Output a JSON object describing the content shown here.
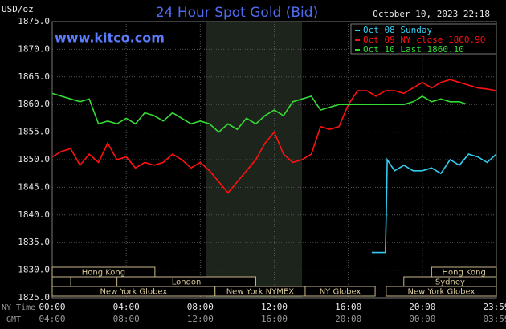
{
  "chart_data": {
    "type": "line",
    "title": "24 Hour Spot Gold (Bid)",
    "subtitle": "www.kitco.com",
    "timestamp": "October 10, 2023 22:18",
    "ylabel": "USD/oz",
    "x_row_labels": [
      "NY Time",
      "GMT"
    ],
    "xlim": [
      0,
      24
    ],
    "xticks": [
      {
        "value": 0,
        "label": "00:00"
      },
      {
        "value": 4,
        "label": "04:00"
      },
      {
        "value": 8,
        "label": "08:00"
      },
      {
        "value": 12,
        "label": "12:00"
      },
      {
        "value": 16,
        "label": "16:00"
      },
      {
        "value": 20,
        "label": "20:00"
      },
      {
        "value": 24,
        "label": "23:59"
      }
    ],
    "gmt_tick_labels": [
      "04:00",
      "08:00",
      "12:00",
      "16:00",
      "20:00",
      "00:00",
      "03:59"
    ],
    "ylim": [
      1825,
      1875
    ],
    "yticks": [
      {
        "value": 1825,
        "label": "1825.0"
      },
      {
        "value": 1830,
        "label": "1830.0"
      },
      {
        "value": 1835,
        "label": "1835.0"
      },
      {
        "value": 1840,
        "label": "1840.0"
      },
      {
        "value": 1845,
        "label": "1845.0"
      },
      {
        "value": 1850,
        "label": "1850.0"
      },
      {
        "value": 1855,
        "label": "1855.0"
      },
      {
        "value": 1860,
        "label": "1860.0"
      },
      {
        "value": 1865,
        "label": "1865.0"
      },
      {
        "value": 1870,
        "label": "1870.0"
      },
      {
        "value": 1875,
        "label": "1875.0"
      }
    ],
    "grid": true,
    "legend": "top-right",
    "highlight_x": [
      8.33,
      13.5
    ],
    "series": [
      {
        "name": "Oct 08 Sunday",
        "color": "#33ccee",
        "x": [
          17.27,
          18.0,
          18.05,
          18.1,
          18.5,
          19,
          19.5,
          20,
          20.5,
          21,
          21.5,
          22,
          22.5,
          23,
          23.5,
          24
        ],
        "values": [
          1833.2,
          1833.2,
          1840,
          1850,
          1848,
          1849,
          1848,
          1848,
          1848.5,
          1847.5,
          1850,
          1849,
          1851,
          1850.5,
          1849.5,
          1851
        ]
      },
      {
        "name": "Oct 09 NY close 1860.90",
        "color": "#ff1111",
        "x": [
          0,
          0.5,
          1,
          1.5,
          2,
          2.5,
          3,
          3.5,
          4,
          4.5,
          5,
          5.5,
          6,
          6.5,
          7,
          7.5,
          8,
          8.5,
          9,
          9.5,
          10,
          10.5,
          11,
          11.5,
          12,
          12.5,
          13,
          13.5,
          14,
          14.5,
          15,
          15.5,
          16,
          16.5,
          17,
          17.5,
          18,
          18.5,
          19,
          19.5,
          20,
          20.5,
          21,
          21.5,
          22,
          22.5,
          23,
          23.5,
          24
        ],
        "values": [
          1850.5,
          1851.5,
          1852,
          1849,
          1851,
          1849.5,
          1853,
          1850,
          1850.5,
          1848.5,
          1849.5,
          1849,
          1849.5,
          1851,
          1850,
          1848.5,
          1849.5,
          1848,
          1846,
          1844,
          1846,
          1848,
          1850,
          1853,
          1855,
          1851,
          1849.5,
          1850,
          1851,
          1856,
          1855.5,
          1856,
          1860,
          1862.5,
          1862.5,
          1861.5,
          1862.5,
          1862.5,
          1862,
          1863,
          1864,
          1863,
          1864,
          1864.5,
          1864,
          1863.5,
          1863,
          1862.8,
          1862.5
        ]
      },
      {
        "name": "Oct 10 Last 1860.10",
        "color": "#33dd33",
        "x": [
          0,
          0.5,
          1,
          1.5,
          2,
          2.5,
          3,
          3.5,
          4,
          4.5,
          5,
          5.5,
          6,
          6.5,
          7,
          7.5,
          8,
          8.5,
          9,
          9.5,
          10,
          10.5,
          11,
          11.5,
          12,
          12.5,
          13,
          13.5,
          14,
          14.5,
          15,
          15.5,
          16,
          16.5,
          17,
          17.5,
          18,
          18.5,
          19,
          19.5,
          20,
          20.5,
          21,
          21.5,
          22,
          22.35
        ],
        "values": [
          1862,
          1861.5,
          1861,
          1860.5,
          1861,
          1856.5,
          1857,
          1856.5,
          1857.5,
          1856.5,
          1858.5,
          1858,
          1857,
          1858.5,
          1857.5,
          1856.5,
          1857,
          1856.5,
          1855,
          1856.5,
          1855.5,
          1857.5,
          1856.5,
          1858,
          1859,
          1858,
          1860.5,
          1861,
          1861.5,
          1859,
          1859.5,
          1860,
          1860,
          1860,
          1860,
          1860,
          1860,
          1860,
          1860,
          1860.5,
          1861.5,
          1860.5,
          1861,
          1860.5,
          1860.5,
          1860.1
        ]
      }
    ],
    "session_rows": [
      [
        {
          "label": "Hong Kong",
          "start": 0,
          "end": 5.55
        },
        {
          "label": "Hong Kong",
          "start": 20.5,
          "end": 24
        }
      ],
      [
        {
          "label": null,
          "start": 0,
          "end": 1
        },
        {
          "label": "London",
          "start": 3.5,
          "end": 11
        },
        {
          "label": "Sydney",
          "start": 19,
          "end": 24
        }
      ],
      [
        {
          "label": "New York Globex",
          "start": 0,
          "end": 8.8
        },
        {
          "label": "New York NYMEX",
          "start": 8.8,
          "end": 13.67
        },
        {
          "label": "NY Globex",
          "start": 13.67,
          "end": 17.45
        },
        {
          "label": "New York Globex",
          "start": 18.05,
          "end": 24
        }
      ]
    ]
  }
}
